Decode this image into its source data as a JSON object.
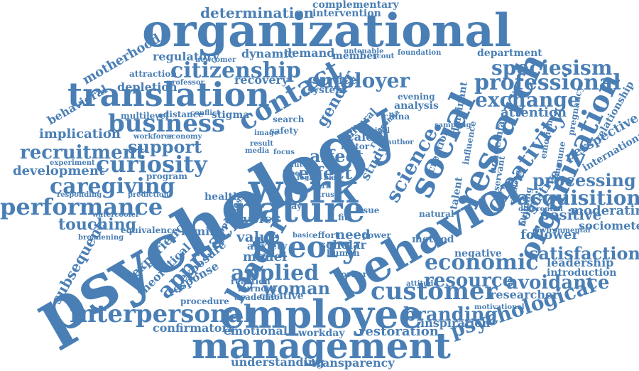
{
  "colors": {
    "word": "#4a7fb5",
    "background": "#ffffff"
  },
  "words": [
    "psychology",
    "behavior",
    "organizational",
    "employee",
    "management",
    "nature",
    "work",
    "translation",
    "social",
    "research",
    "organization",
    "business",
    "contact",
    "theory",
    "leader",
    "customer",
    "citizenship",
    "curiosity",
    "creativity",
    "performance",
    "caregiving",
    "recruitment",
    "economic",
    "interpersonal",
    "psychological",
    "professional",
    "employer",
    "exchange",
    "speciesism",
    "acquisition",
    "satisfaction",
    "avoidance",
    "approach",
    "applied",
    "science",
    "resource",
    "branding",
    "processing",
    "support",
    "determination",
    "intervention",
    "complementary",
    "development",
    "implication",
    "affect",
    "effect",
    "woman",
    "motherhood",
    "depletion",
    "behavioral",
    "voice",
    "value",
    "family",
    "gender",
    "touching",
    "experience",
    "theoretical",
    "exposure",
    "response",
    "subsequent",
    "model",
    "anxiety",
    "need",
    "scholar",
    "human",
    "cognitive",
    "attention",
    "perspective",
    "international",
    "relationship",
    "positive",
    "moderating",
    "sociometer",
    "follower",
    "leadership",
    "introduction",
    "researcher",
    "inspiration",
    "restoration",
    "workday",
    "emotional",
    "confirmatory",
    "understanding",
    "transparency",
    "procedure",
    "creative",
    "burnout",
    "academic",
    "reaction",
    "service",
    "recovery",
    "regulatory",
    "dynamic",
    "demand",
    "member",
    "department",
    "foundation",
    "attraction",
    "professor",
    "multilevel",
    "distance",
    "conflict",
    "stigma",
    "economy",
    "experiment",
    "program",
    "health",
    "openness",
    "equivalence",
    "broadening",
    "watercooler",
    "responding",
    "prediction",
    "workforce",
    "analysis",
    "system",
    "evening",
    "dominant",
    "influence",
    "creation",
    "study",
    "cultural",
    "scale",
    "factor",
    "talent",
    "method",
    "natural",
    "negative",
    "differential",
    "environmental",
    "immune",
    "emotion",
    "pregnancy",
    "academia",
    "building",
    "motivational",
    "attitude",
    "worker",
    "power",
    "effort",
    "basic",
    "safety",
    "search",
    "image",
    "media",
    "focus",
    "result",
    "newcomer",
    "untenable",
    "scout",
    "servant",
    "challenge",
    "sampling",
    "issue",
    "review",
    "fit",
    "pay",
    "author",
    "china",
    "original",
    "agenda",
    "dark",
    "bias",
    "trust",
    "future",
    "label",
    "logic"
  ]
}
